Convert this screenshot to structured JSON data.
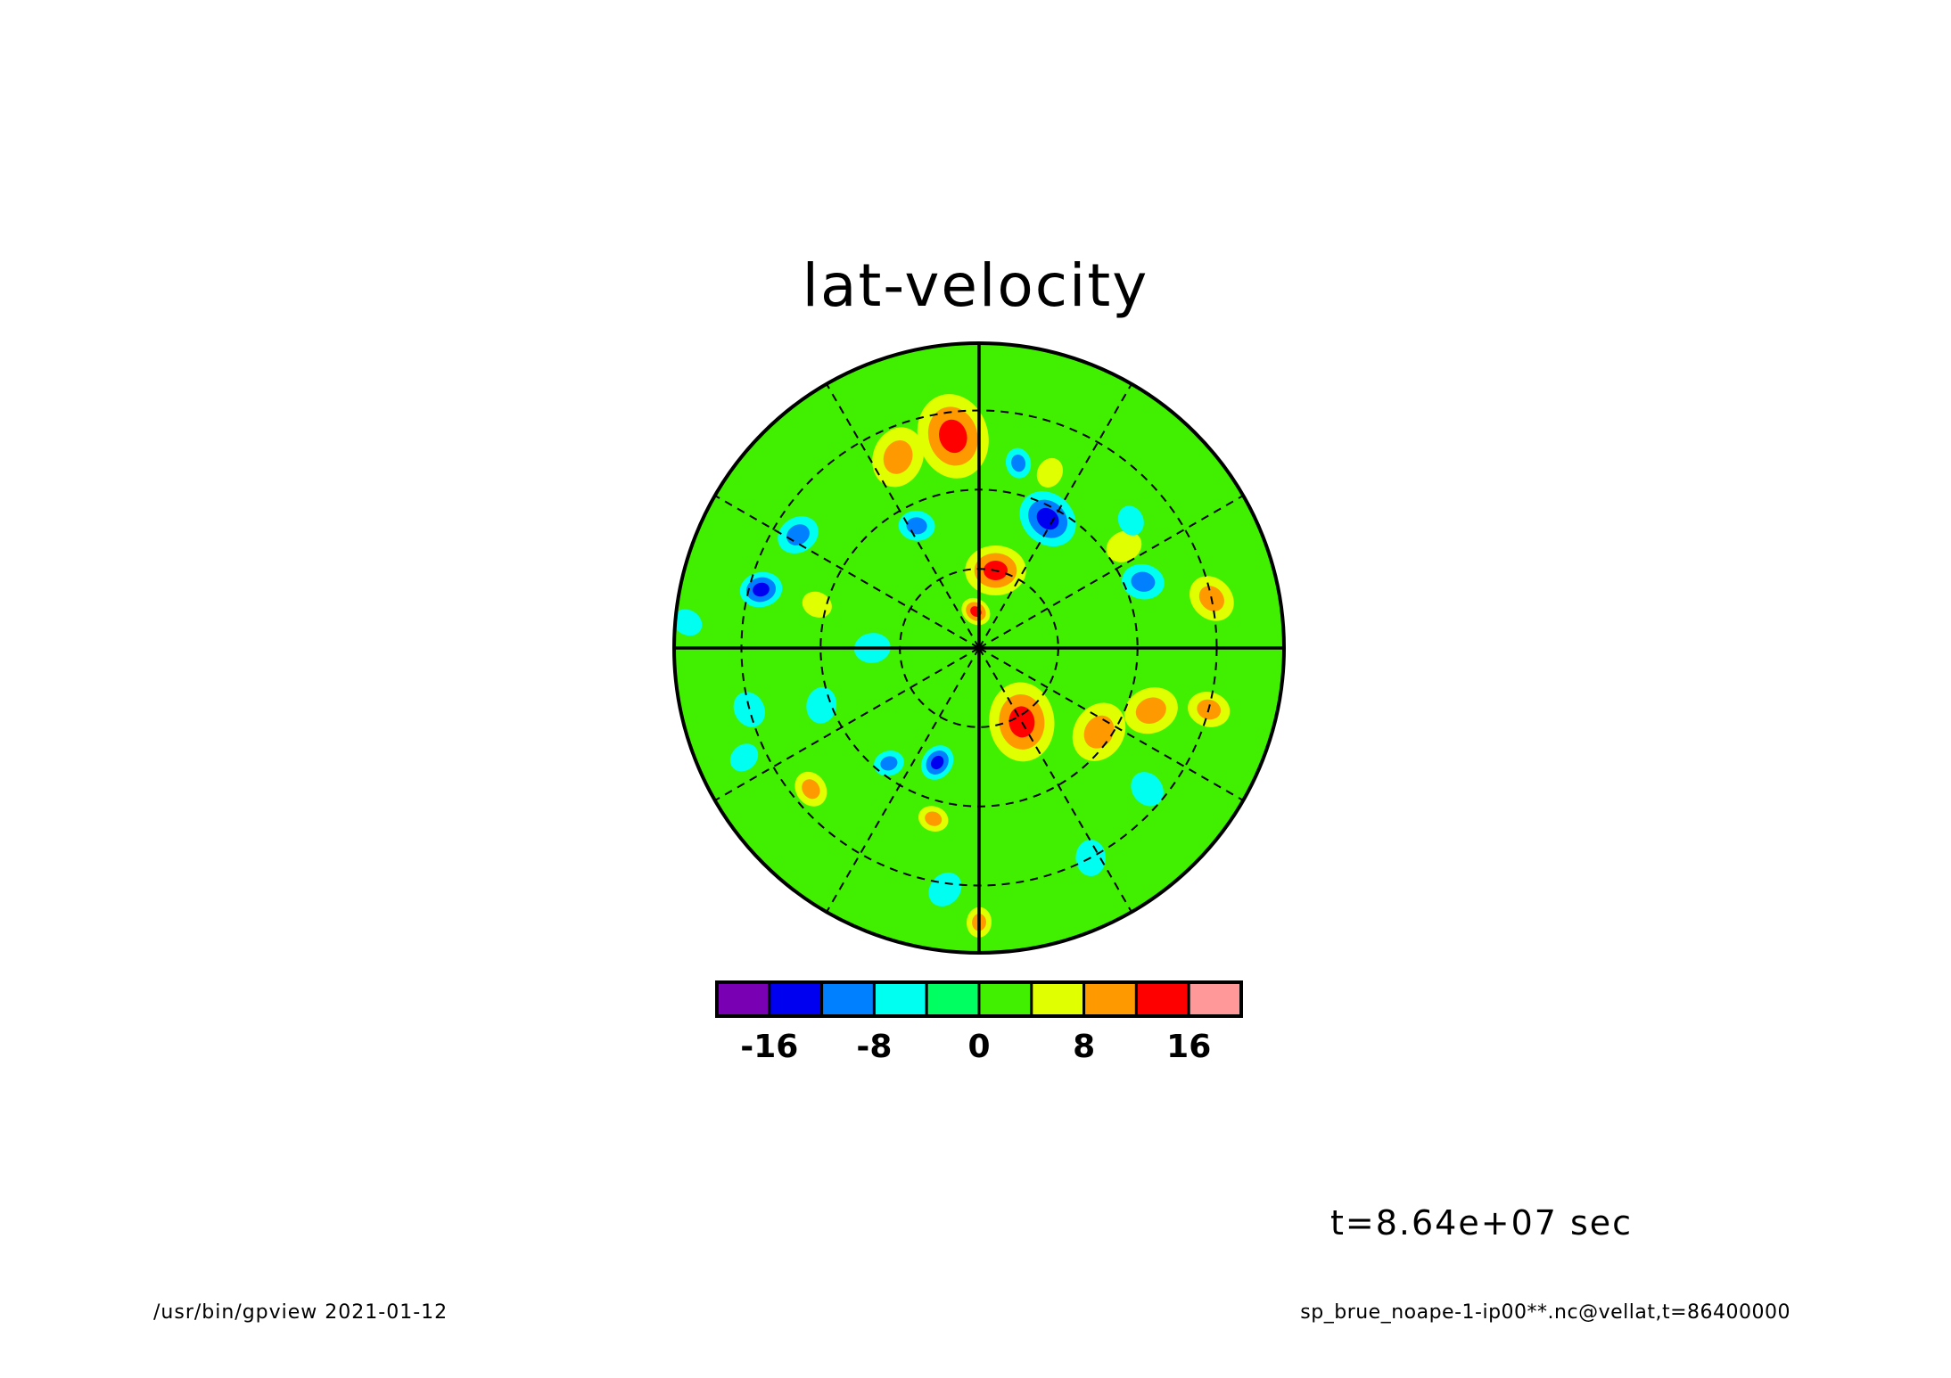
{
  "title": "lat-velocity",
  "time_label": "t=8.64e+07 sec",
  "footer": {
    "left": "/usr/bin/gpview  2021-01-12",
    "right": "sp_brue_noape-1-ip00**.nc@vellat,t=86400000"
  },
  "colorbar": {
    "levels": [
      -20,
      -16,
      -12,
      -8,
      -4,
      0,
      4,
      8,
      12,
      16,
      20
    ],
    "colors": [
      "#7a00b4",
      "#0000f0",
      "#0080ff",
      "#00fff0",
      "#00ff60",
      "#40f000",
      "#e0ff00",
      "#ff9900",
      "#ff0000",
      "#ff9999"
    ],
    "tick_labels": [
      "-16",
      "-8",
      "0",
      "8",
      "16"
    ],
    "tick_values": [
      -16,
      -8,
      0,
      8,
      16
    ]
  },
  "map": {
    "projection": "polar",
    "background_color": "#40f000",
    "meridian_count": 12,
    "latitude_rings": 3,
    "anomalies": [
      {
        "r": 0.26,
        "a": 78,
        "size": 0.1,
        "v": 12
      },
      {
        "r": 0.12,
        "a": 95,
        "size": 0.05,
        "v": 12
      },
      {
        "r": 0.7,
        "a": 97,
        "size": 0.14,
        "v": 14
      },
      {
        "r": 0.68,
        "a": 113,
        "size": 0.1,
        "v": 10
      },
      {
        "r": 0.7,
        "a": 148,
        "size": 0.07,
        "v": -10
      },
      {
        "r": 0.45,
        "a": 117,
        "size": 0.06,
        "v": -10
      },
      {
        "r": 0.48,
        "a": 62,
        "size": 0.1,
        "v": -14
      },
      {
        "r": 0.62,
        "a": 78,
        "size": 0.05,
        "v": -10
      },
      {
        "r": 0.62,
        "a": 68,
        "size": 0.05,
        "v": 6
      },
      {
        "r": 0.58,
        "a": 35,
        "size": 0.06,
        "v": 4
      },
      {
        "r": 0.58,
        "a": 22,
        "size": 0.07,
        "v": -10
      },
      {
        "r": 0.78,
        "a": 12,
        "size": 0.08,
        "v": 8
      },
      {
        "r": 0.28,
        "a": 300,
        "size": 0.13,
        "v": 14
      },
      {
        "r": 0.48,
        "a": 325,
        "size": 0.1,
        "v": 8
      },
      {
        "r": 0.6,
        "a": 340,
        "size": 0.09,
        "v": 8
      },
      {
        "r": 0.78,
        "a": 345,
        "size": 0.07,
        "v": 8
      },
      {
        "r": 0.72,
        "a": 320,
        "size": 0.06,
        "v": -4
      },
      {
        "r": 0.78,
        "a": 298,
        "size": 0.06,
        "v": -6
      },
      {
        "r": 0.4,
        "a": 250,
        "size": 0.06,
        "v": -14
      },
      {
        "r": 0.48,
        "a": 232,
        "size": 0.05,
        "v": -8
      },
      {
        "r": 0.58,
        "a": 255,
        "size": 0.05,
        "v": 8
      },
      {
        "r": 0.72,
        "a": 220,
        "size": 0.06,
        "v": 8
      },
      {
        "r": 0.9,
        "a": 270,
        "size": 0.05,
        "v": 8
      },
      {
        "r": 0.8,
        "a": 262,
        "size": 0.06,
        "v": -6
      },
      {
        "r": 0.74,
        "a": 165,
        "size": 0.07,
        "v": -14
      },
      {
        "r": 0.55,
        "a": 165,
        "size": 0.05,
        "v": 6
      },
      {
        "r": 0.78,
        "a": 195,
        "size": 0.06,
        "v": -4
      },
      {
        "r": 0.55,
        "a": 200,
        "size": 0.06,
        "v": -6
      },
      {
        "r": 0.85,
        "a": 205,
        "size": 0.05,
        "v": -6
      },
      {
        "r": 0.35,
        "a": 180,
        "size": 0.06,
        "v": -6
      },
      {
        "r": 0.96,
        "a": 175,
        "size": 0.05,
        "v": -6
      },
      {
        "r": 0.65,
        "a": 40,
        "size": 0.05,
        "v": -4
      }
    ]
  }
}
